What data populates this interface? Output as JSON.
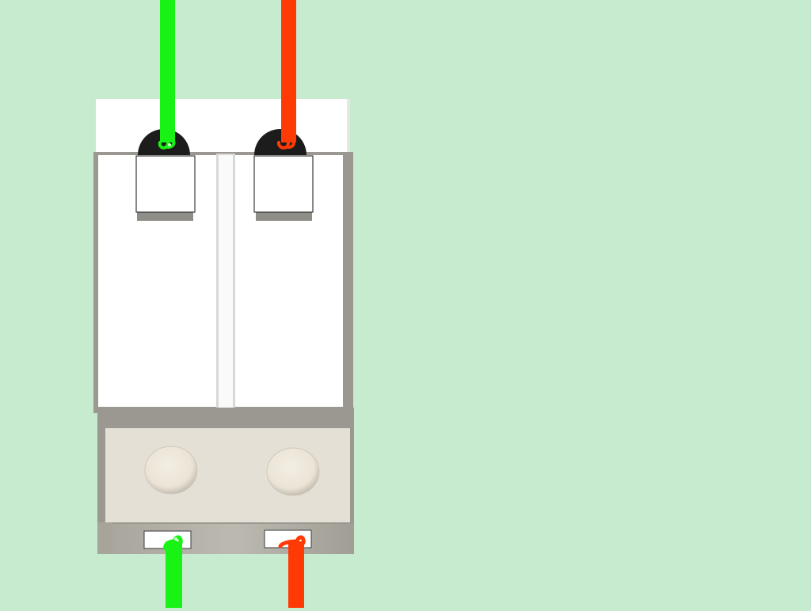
{
  "diagram": {
    "background_color": "#c6ebcf",
    "component": "double-pole-breaker",
    "wires": [
      {
        "id": "top-left",
        "terminal": "line-left",
        "color": "#19f215"
      },
      {
        "id": "top-right",
        "terminal": "line-right",
        "color": "#ff3a05"
      },
      {
        "id": "bottom-left",
        "terminal": "load-left",
        "color": "#19f215"
      },
      {
        "id": "bottom-right",
        "terminal": "load-right",
        "color": "#ff3a05"
      }
    ],
    "colors": {
      "housing_white": "#ffffff",
      "housing_shadow": "#9a9891",
      "base_beige": "#e4e0d5",
      "terminal_black": "#1c1c1c",
      "button_light": "#efe8dc"
    }
  }
}
